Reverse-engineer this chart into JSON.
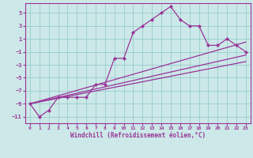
{
  "xlabel": "Windchill (Refroidissement éolien,°C)",
  "background_color": "#cce8e8",
  "grid_color": "#99cccc",
  "line_color": "#993399",
  "xlim": [
    -0.5,
    23.5
  ],
  "ylim": [
    -12,
    6.5
  ],
  "xticks": [
    0,
    1,
    2,
    3,
    4,
    5,
    6,
    7,
    8,
    9,
    10,
    11,
    12,
    13,
    14,
    15,
    16,
    17,
    18,
    19,
    20,
    21,
    22,
    23
  ],
  "yticks": [
    -11,
    -9,
    -7,
    -5,
    -3,
    -1,
    1,
    3,
    5
  ],
  "main_x": [
    0,
    1,
    2,
    3,
    4,
    5,
    6,
    7,
    8,
    9,
    10,
    11,
    12,
    13,
    14,
    15,
    16,
    17,
    18,
    19,
    20,
    21,
    22,
    23
  ],
  "main_y": [
    -9,
    -11,
    -10,
    -8,
    -8,
    -8,
    -8,
    -6,
    -6,
    -2,
    -2,
    2,
    3,
    4,
    5,
    6,
    4,
    3,
    3,
    0,
    0,
    1,
    0,
    -1
  ],
  "line1_x": [
    0,
    23
  ],
  "line1_y": [
    -9,
    -1.5
  ],
  "line2_x": [
    0,
    23
  ],
  "line2_y": [
    -9,
    -2.5
  ],
  "line3_x": [
    0,
    23
  ],
  "line3_y": [
    -9,
    0.5
  ]
}
